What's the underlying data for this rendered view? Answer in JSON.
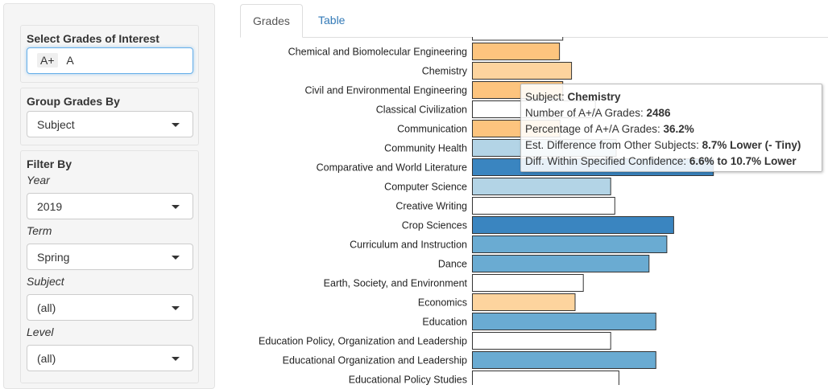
{
  "sidebar": {
    "grades_label": "Select Grades of Interest",
    "grades_selected": [
      "A+",
      "A"
    ],
    "group_label": "Group Grades By",
    "group_value": "Subject",
    "filter_label": "Filter By",
    "year_label": "Year",
    "year_value": "2019",
    "term_label": "Term",
    "term_value": "Spring",
    "subject_label": "Subject",
    "subject_value": "(all)",
    "level_label": "Level",
    "level_value": "(all)"
  },
  "tabs": [
    {
      "label": "Grades",
      "active": true
    },
    {
      "label": "Table",
      "active": false
    }
  ],
  "tooltip": {
    "subject_key": "Subject:",
    "subject_val": "Chemistry",
    "count_key": "Number of A+/A Grades:",
    "count_val": "2486",
    "pct_key": "Percentage of A+/A Grades:",
    "pct_val": "36.2%",
    "diff_key": "Est. Difference from Other Subjects:",
    "diff_val": "8.7% Lower (- Tiny)",
    "conf_key": "Diff. Within Specified Confidence:",
    "conf_val": "6.6% to 10.7% Lower"
  },
  "colors": {
    "dark_orange": "#fdc47e",
    "light_orange": "#fdd49e",
    "white": "#ffffff",
    "light_blue": "#b3d4e6",
    "mid_blue": "#6aabd2",
    "dark_blue": "#3a85c0"
  },
  "chart_data": {
    "type": "bar",
    "orientation": "horizontal",
    "categories": [
      "Chemical and Biomolecular Engineering",
      "Chemistry",
      "Civil and Environmental Engineering",
      "Classical Civilization",
      "Communication",
      "Community Health",
      "Comparative and World Literature",
      "Computer Science",
      "Creative Writing",
      "Crop Sciences",
      "Curriculum and Instruction",
      "Dance",
      "Earth, Society, and Environment",
      "Economics",
      "Education",
      "Education Policy, Organization and Leadership",
      "Educational Organization and Leadership",
      "Educational Policy Studies"
    ],
    "values": [
      31.8,
      36.2,
      33.0,
      44.9,
      32.0,
      52.5,
      88.0,
      50.5,
      52.0,
      73.5,
      71.0,
      64.5,
      40.5,
      37.5,
      67.0,
      50.5,
      67.0,
      53.5
    ],
    "colors": [
      "dark_orange",
      "light_orange",
      "dark_orange",
      "white",
      "dark_orange",
      "light_blue",
      "dark_blue",
      "light_blue",
      "white",
      "dark_blue",
      "mid_blue",
      "mid_blue",
      "white",
      "light_orange",
      "mid_blue",
      "white",
      "mid_blue",
      "white"
    ],
    "partial_top_bar_value": 33.0,
    "xlim": [
      0,
      148
    ]
  }
}
